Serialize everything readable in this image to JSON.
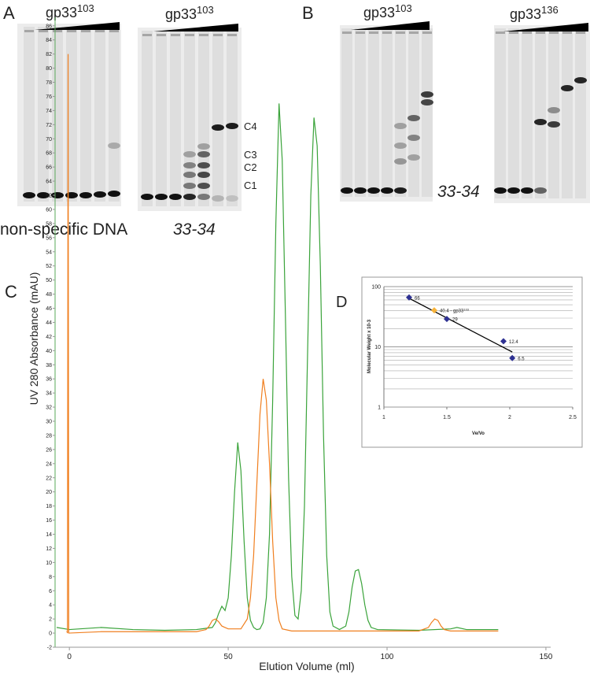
{
  "panel_labels": [
    "A",
    "B",
    "C",
    "D"
  ],
  "gels": [
    {
      "title": "gp33",
      "superscript": "103",
      "caption": "non-specific DNA"
    },
    {
      "title": "gp33",
      "superscript": "103",
      "caption": "33-34",
      "complexes": [
        "C4",
        "C3",
        "C2",
        "C1"
      ]
    },
    {
      "title": "gp33",
      "superscript": "103",
      "caption": "33-34"
    },
    {
      "title": "gp33",
      "superscript": "136"
    }
  ],
  "chart_data": [
    {
      "type": "line",
      "x_label": "Elution Volume (ml)",
      "y_label": "UV  280 Absorbance (mAU)",
      "xlim": [
        -4.5,
        151.5
      ],
      "xticks": [
        0,
        50,
        100,
        150
      ],
      "ylim": [
        -2,
        87.2
      ],
      "yticks": [
        -2,
        0,
        2,
        4,
        6,
        8,
        10,
        12,
        14,
        16,
        18,
        20,
        22,
        24,
        26,
        28,
        30,
        32,
        34,
        36,
        38,
        40,
        42,
        44,
        46,
        48,
        50,
        52,
        54,
        56,
        58,
        60,
        62,
        64,
        66,
        68,
        70,
        72,
        74,
        76,
        78,
        80,
        82,
        84,
        86
      ],
      "series": [
        {
          "color": "#3aa33a",
          "x": [
            -4,
            0,
            10,
            20,
            30,
            40,
            45,
            46,
            47,
            48,
            49,
            50,
            51,
            52,
            53,
            54,
            55,
            56,
            57,
            58,
            59,
            60,
            61,
            62,
            63,
            64,
            65,
            66,
            67,
            68,
            69,
            70,
            71,
            72,
            73,
            74,
            75,
            76,
            77,
            78,
            79,
            80,
            81,
            82,
            83,
            85,
            87,
            88,
            89,
            90,
            91,
            92,
            93,
            94,
            95,
            97,
            110,
            120,
            122,
            125,
            135
          ],
          "values": [
            0.8,
            0.5,
            0.8,
            0.5,
            0.4,
            0.5,
            0.8,
            1.5,
            2.8,
            3.8,
            3.2,
            5,
            11,
            20,
            27,
            23,
            13,
            5,
            1.8,
            0.8,
            0.5,
            0.6,
            1.5,
            5,
            14,
            33,
            58,
            75,
            67,
            45,
            22,
            8,
            2.5,
            2,
            6,
            18,
            40,
            62,
            73,
            69,
            52,
            28,
            11,
            3,
            1,
            0.5,
            1,
            3,
            6.5,
            8.8,
            9,
            7,
            4,
            1.8,
            0.8,
            0.5,
            0.4,
            0.6,
            0.8,
            0.5,
            0.5
          ]
        },
        {
          "color": "#f07f1f",
          "x": [
            -0.8,
            -0.6,
            -0.4,
            -0.2,
            10,
            40,
            43,
            44,
            45,
            46,
            47,
            48,
            49,
            50,
            54,
            56,
            57,
            58,
            59,
            60,
            61,
            62,
            63,
            64,
            65,
            66,
            67,
            70,
            110,
            113,
            114,
            115,
            116,
            117,
            118,
            120,
            135
          ],
          "values": [
            0.3,
            0,
            82,
            0,
            0.2,
            0.2,
            0.5,
            1,
            1.8,
            2,
            1.6,
            1,
            0.8,
            0.6,
            0.6,
            2,
            5,
            11,
            21,
            31,
            36,
            33,
            24,
            13,
            5,
            1.8,
            0.6,
            0.3,
            0.3,
            0.8,
            1.5,
            2,
            1.8,
            1,
            0.5,
            0.3,
            0.3
          ]
        }
      ]
    },
    {
      "type": "scatter",
      "x_label": "Ve/Vo",
      "y_label": "Molecular Weight x 10-3",
      "xlim": [
        1,
        2.5
      ],
      "xticks": [
        1,
        1.5,
        2,
        2.5
      ],
      "ylim": [
        1,
        100
      ],
      "yticks": [
        1,
        10,
        100
      ],
      "log_y": true,
      "grid": true,
      "yminor": [
        2,
        3,
        4,
        5,
        6,
        7,
        8,
        9,
        20,
        30,
        40,
        50,
        60,
        70,
        80,
        90
      ],
      "series": [
        {
          "color": "#2e3192",
          "x": [
            1.2,
            1.5,
            1.95,
            2.02
          ],
          "values": [
            66,
            29,
            12.4,
            6.5
          ]
        },
        {
          "color": "#f7b33a",
          "x": [
            1.4
          ],
          "values": [
            40.4
          ],
          "value_labels": [
            "40.4 - gp33"
          ],
          "label_superscript": "103"
        }
      ],
      "trendline": {
        "color": "#000000",
        "x": [
          1.2,
          2.02
        ],
        "values": [
          64,
          8.2
        ]
      }
    }
  ]
}
